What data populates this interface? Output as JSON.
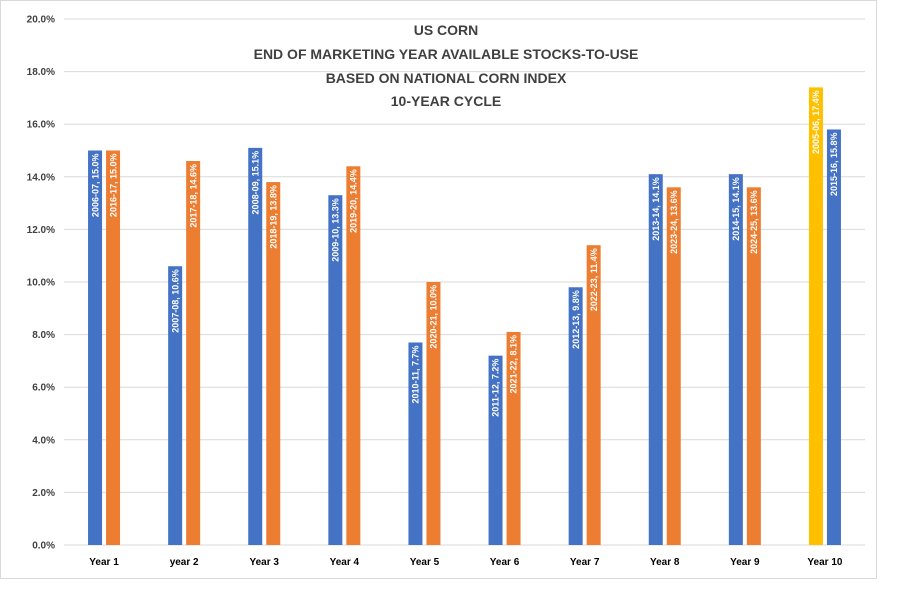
{
  "chart_data": {
    "type": "bar",
    "title_lines": [
      "US CORN",
      "END OF MARKETING YEAR AVAILABLE STOCKS-TO-USE",
      "BASED ON NATIONAL CORN INDEX",
      "10-YEAR CYCLE"
    ],
    "xlabel": "",
    "ylabel": "",
    "ylim": [
      0,
      20
    ],
    "yticks": [
      0,
      2,
      4,
      6,
      8,
      10,
      12,
      14,
      16,
      18,
      20
    ],
    "ytick_labels": [
      "0.0%",
      "2.0%",
      "4.0%",
      "6.0%",
      "8.0%",
      "10.0%",
      "12.0%",
      "14.0%",
      "16.0%",
      "18.0%",
      "20.0%"
    ],
    "grid": true,
    "legend": "none",
    "categories": [
      "Year 1",
      "year 2",
      "Year 3",
      "Year 4",
      "Year 5",
      "Year 6",
      "Year 7",
      "Year 8",
      "Year 9",
      "Year 10"
    ],
    "series": [
      {
        "color": "#4472c4",
        "values": [
          15.0,
          10.6,
          15.1,
          13.3,
          7.7,
          7.2,
          9.8,
          14.1,
          14.1,
          17.4
        ],
        "labels": [
          "2006-07, 15.0%",
          "2007-08, 10.6%",
          "2008-09, 15.1%",
          "2009-10, 13.3%",
          "2010-11, 7.7%",
          "2011-12, 7.2%",
          "2012-13, 9.8%",
          "2013-14, 14.1%",
          "2014-15, 14.1%",
          "2005-06, 17.4%"
        ],
        "point_colors": [
          null,
          null,
          null,
          null,
          null,
          null,
          null,
          null,
          null,
          "#ffc000"
        ]
      },
      {
        "color": "#ed7d31",
        "values": [
          15.0,
          14.6,
          13.8,
          14.4,
          10.0,
          8.1,
          11.4,
          13.6,
          13.6,
          15.8
        ],
        "labels": [
          "2016-17, 15.0%",
          "2017-18, 14.6%",
          "2018-19, 13.8%",
          "2019-20, 14.4%",
          "2020-21, 10.0%",
          "2021-22, 8.1%",
          "2022-23, 11.4%",
          "2023-24, 13.6%",
          "2024-25, 13.6%",
          "2015-16, 15.8%"
        ],
        "point_colors": [
          null,
          null,
          null,
          null,
          null,
          null,
          null,
          null,
          null,
          "#4472c4"
        ]
      }
    ]
  }
}
